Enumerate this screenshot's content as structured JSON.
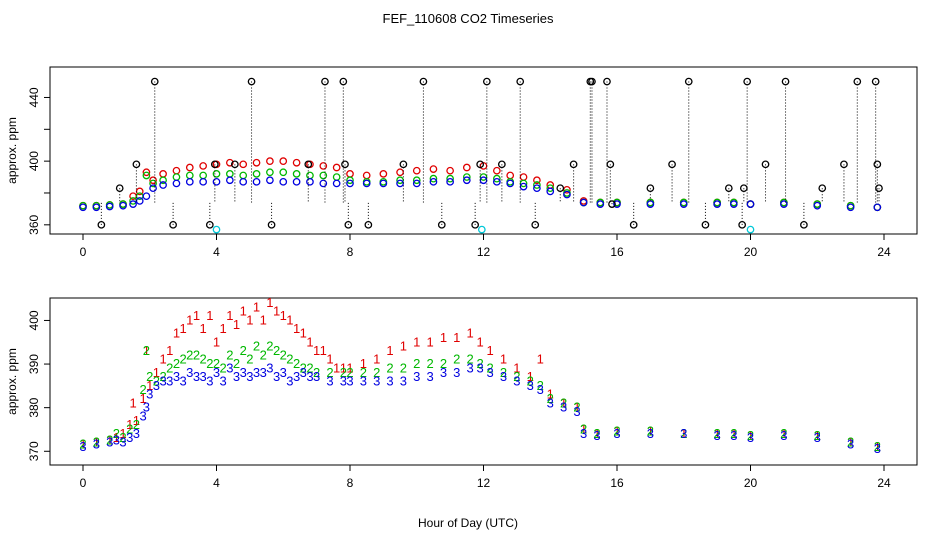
{
  "title": "FEF_110608  CO2 Timeseries",
  "xlabel": "Hour of Day (UTC)",
  "colors": {
    "series1": "#e00000",
    "series2": "#00b800",
    "series3": "#0000e0",
    "qc_hour": "#000000",
    "qc_cyan": "#00c8d8",
    "spike": "#000000"
  },
  "chart_data": [
    {
      "type": "scatter",
      "name": "upper-panel",
      "ylabel": "approx. ppm",
      "xlim": [
        0,
        24
      ],
      "ylim": [
        358,
        456
      ],
      "xticks": [
        0,
        4,
        8,
        12,
        16,
        20,
        24
      ],
      "yticks": [
        360,
        400,
        440
      ],
      "yticks_unlabeled": [
        380,
        420
      ],
      "x_tick_labels": [
        "0",
        "4",
        "8",
        "12",
        "16",
        "20",
        "24"
      ],
      "y_tick_labels": [
        "360",
        "400",
        "440"
      ],
      "series": [
        {
          "name": "red",
          "symbol": "o",
          "x": [
            0,
            0.4,
            0.8,
            1.2,
            1.5,
            1.7,
            1.9,
            2.1,
            2.4,
            2.8,
            3.2,
            3.6,
            4.0,
            4.4,
            4.8,
            5.2,
            5.6,
            6.0,
            6.4,
            6.8,
            7.2,
            7.6,
            8.0,
            8.5,
            9.0,
            9.5,
            10.0,
            10.5,
            11.0,
            11.5,
            12.0,
            12.4,
            12.8,
            13.2,
            13.6,
            14.0,
            14.5,
            15.0,
            15.5,
            16.0,
            17.0,
            18.0,
            19.0,
            19.5,
            20.0,
            21.0,
            22.0,
            23.0,
            23.8
          ],
          "y": [
            372,
            372,
            372.5,
            373,
            378,
            381,
            393,
            388,
            392,
            394,
            396,
            397,
            398,
            399,
            398,
            399,
            400,
            400,
            399,
            398,
            397,
            396,
            392,
            391,
            392,
            393,
            394,
            395,
            394,
            396,
            397,
            394,
            391,
            390,
            388,
            385,
            382,
            375,
            374,
            374,
            374,
            374,
            374,
            374,
            373,
            374,
            373,
            372,
            371
          ]
        },
        {
          "name": "green",
          "symbol": "o",
          "x": [
            0,
            0.4,
            0.8,
            1.2,
            1.5,
            1.7,
            1.9,
            2.1,
            2.4,
            2.8,
            3.2,
            3.6,
            4.0,
            4.4,
            4.8,
            5.2,
            5.6,
            6.0,
            6.4,
            6.8,
            7.2,
            7.6,
            8.0,
            8.5,
            9.0,
            9.5,
            10.0,
            10.5,
            11.0,
            11.5,
            12.0,
            12.4,
            12.8,
            13.2,
            13.6,
            14.0,
            14.5,
            15.0,
            15.5,
            16.0,
            17.0,
            18.0,
            19.0,
            19.5,
            20.0,
            21.0,
            22.0,
            23.0,
            23.8
          ],
          "y": [
            372,
            372,
            372.5,
            373,
            375,
            378,
            391,
            386,
            388,
            390,
            391,
            391,
            392,
            392,
            391,
            392,
            393,
            393,
            392,
            391,
            391,
            390,
            388,
            387,
            387,
            388,
            388,
            389,
            389,
            390,
            390,
            389,
            387,
            386,
            385,
            383,
            380,
            374,
            374,
            374,
            374,
            374,
            374,
            374,
            373,
            374,
            373,
            372,
            371
          ]
        },
        {
          "name": "blue",
          "symbol": "o",
          "x": [
            0,
            0.4,
            0.8,
            1.2,
            1.5,
            1.7,
            1.9,
            2.1,
            2.4,
            2.8,
            3.2,
            3.6,
            4.0,
            4.4,
            4.8,
            5.2,
            5.6,
            6.0,
            6.4,
            6.8,
            7.2,
            7.6,
            8.0,
            8.5,
            9.0,
            9.5,
            10.0,
            10.5,
            11.0,
            11.5,
            12.0,
            12.4,
            12.8,
            13.2,
            13.6,
            14.0,
            14.5,
            15.0,
            15.5,
            16.0,
            17.0,
            18.0,
            19.0,
            19.5,
            20.0,
            21.0,
            22.0,
            23.0,
            23.8
          ],
          "y": [
            371,
            371,
            371.5,
            372,
            373,
            375,
            378,
            383,
            385,
            386,
            387,
            387,
            387,
            388,
            387,
            387,
            388,
            387,
            387,
            387,
            386,
            386,
            386,
            386,
            386,
            386,
            386,
            387,
            387,
            388,
            388,
            387,
            386,
            384,
            383,
            381,
            379,
            374,
            373,
            373,
            373,
            373,
            373,
            373,
            373,
            373,
            372,
            371,
            371
          ]
        },
        {
          "name": "spikes-black",
          "symbol": "o",
          "x": [
            0.55,
            1.1,
            1.6,
            2.15,
            2.7,
            3.8,
            3.95,
            4.55,
            5.05,
            5.65,
            6.75,
            7.25,
            7.8,
            7.85,
            7.95,
            8.55,
            9.6,
            10.2,
            10.75,
            11.75,
            11.9,
            12.1,
            12.55,
            13.1,
            13.55,
            14.3,
            14.7,
            15.2,
            15.25,
            15.7,
            15.8,
            15.85,
            16.5,
            17.0,
            17.65,
            18.15,
            18.65,
            19.35,
            19.75,
            19.8,
            19.9,
            20.45,
            21.05,
            21.6,
            22.15,
            22.8,
            23.2,
            23.75,
            23.8,
            23.85
          ],
          "y": [
            360,
            383,
            398,
            450,
            360,
            360,
            398,
            398,
            450,
            360,
            398,
            450,
            450,
            398,
            360,
            360,
            398,
            450,
            360,
            360,
            398,
            450,
            398,
            450,
            360,
            383,
            398,
            450,
            450,
            450,
            398,
            373,
            360,
            383,
            398,
            450,
            360,
            383,
            360,
            383,
            450,
            398,
            450,
            360,
            383,
            398,
            450,
            450,
            398,
            383
          ]
        },
        {
          "name": "flag-cyan",
          "symbol": "o",
          "x": [
            4.0,
            11.95,
            20.0
          ],
          "y": [
            357,
            357,
            357
          ]
        }
      ]
    },
    {
      "type": "scatter",
      "name": "lower-panel",
      "ylabel": "approx. ppm",
      "xlim": [
        0,
        24
      ],
      "ylim": [
        368,
        404
      ],
      "xticks": [
        0,
        4,
        8,
        12,
        16,
        20,
        24
      ],
      "yticks": [
        370,
        380,
        390,
        400
      ],
      "x_tick_labels": [
        "0",
        "4",
        "8",
        "12",
        "16",
        "20",
        "24"
      ],
      "y_tick_labels": [
        "370",
        "380",
        "390",
        "400"
      ],
      "series": [
        {
          "name": "1",
          "symbol": "1",
          "x": [
            0,
            0.4,
            0.8,
            1.0,
            1.2,
            1.4,
            1.5,
            1.6,
            1.8,
            1.9,
            2.0,
            2.2,
            2.4,
            2.6,
            2.8,
            3.0,
            3.2,
            3.4,
            3.6,
            3.8,
            4.0,
            4.2,
            4.4,
            4.6,
            4.8,
            5.0,
            5.2,
            5.4,
            5.6,
            5.8,
            6.0,
            6.2,
            6.4,
            6.6,
            6.8,
            7.0,
            7.2,
            7.4,
            7.6,
            7.8,
            8.0,
            8.4,
            8.8,
            9.2,
            9.6,
            10.0,
            10.4,
            10.8,
            11.2,
            11.6,
            11.9,
            12.2,
            12.6,
            13.0,
            13.4,
            13.7,
            14.0,
            14.4,
            14.8,
            15.0,
            15.4,
            16.0,
            17.0,
            18.0,
            19.0,
            19.5,
            20.0,
            21.0,
            22.0,
            23.0,
            23.8
          ],
          "y": [
            371.5,
            372,
            372.5,
            373,
            374,
            376,
            381,
            377,
            382,
            393,
            385,
            388,
            391,
            393,
            397,
            398,
            400,
            401,
            398,
            401,
            395,
            398,
            401,
            399,
            402,
            400,
            403,
            400,
            405,
            402,
            401,
            400,
            398,
            397,
            395,
            393,
            393,
            391,
            389,
            389,
            389,
            390,
            391,
            393,
            394,
            395,
            395,
            396,
            396,
            397,
            395,
            393,
            391,
            389,
            387,
            391,
            383,
            381,
            380,
            375,
            374,
            374.5,
            374.5,
            374,
            374,
            374,
            373.5,
            374,
            373.5,
            372,
            371
          ]
        },
        {
          "name": "2",
          "symbol": "2",
          "x": [
            0,
            0.4,
            0.8,
            1.0,
            1.2,
            1.4,
            1.6,
            1.8,
            1.9,
            2.0,
            2.2,
            2.4,
            2.6,
            2.8,
            3.0,
            3.2,
            3.4,
            3.6,
            3.8,
            4.0,
            4.2,
            4.4,
            4.6,
            4.8,
            5.0,
            5.2,
            5.4,
            5.6,
            5.8,
            6.0,
            6.2,
            6.4,
            6.6,
            6.8,
            7.0,
            7.4,
            7.8,
            8.0,
            8.4,
            8.8,
            9.2,
            9.6,
            10.0,
            10.4,
            10.8,
            11.2,
            11.6,
            11.9,
            12.2,
            12.6,
            13.0,
            13.4,
            13.7,
            14.0,
            14.4,
            14.8,
            15.0,
            15.4,
            16.0,
            17.0,
            18.0,
            19.0,
            19.5,
            20.0,
            21.0,
            22.0,
            23.0,
            23.8
          ],
          "y": [
            371.5,
            372,
            372.5,
            374,
            373,
            375,
            376,
            384,
            393,
            387,
            386,
            387,
            389,
            390,
            391,
            392,
            392,
            391,
            390,
            390,
            389,
            392,
            390,
            393,
            391,
            394,
            392,
            394,
            393,
            392,
            391,
            390,
            389,
            389,
            388,
            388,
            388,
            388,
            388,
            388,
            389,
            389,
            390,
            390,
            390,
            391,
            391,
            390,
            389,
            388,
            387,
            386,
            385,
            382,
            381,
            380,
            375,
            374,
            374.5,
            374.5,
            374,
            374,
            374,
            373.5,
            374,
            373.5,
            372,
            371
          ]
        },
        {
          "name": "3",
          "symbol": "3",
          "x": [
            0,
            0.4,
            0.8,
            1.0,
            1.2,
            1.4,
            1.6,
            1.8,
            1.9,
            2.0,
            2.2,
            2.4,
            2.6,
            2.8,
            3.0,
            3.2,
            3.4,
            3.6,
            3.8,
            4.0,
            4.2,
            4.4,
            4.6,
            4.8,
            5.0,
            5.2,
            5.4,
            5.6,
            5.8,
            6.0,
            6.2,
            6.4,
            6.6,
            6.8,
            7.0,
            7.4,
            7.8,
            8.0,
            8.4,
            8.8,
            9.2,
            9.6,
            10.0,
            10.4,
            10.8,
            11.2,
            11.6,
            11.9,
            12.2,
            12.6,
            13.0,
            13.4,
            13.7,
            14.0,
            14.4,
            14.8,
            15.0,
            15.4,
            16.0,
            17.0,
            18.0,
            19.0,
            19.5,
            20.0,
            21.0,
            22.0,
            23.0,
            23.8
          ],
          "y": [
            371,
            371.5,
            372,
            372.5,
            372,
            373,
            374,
            378,
            380,
            383,
            385,
            386,
            386,
            387,
            386,
            388,
            387,
            387,
            386,
            388,
            386,
            389,
            387,
            388,
            387,
            388,
            388,
            389,
            387,
            388,
            386,
            387,
            388,
            387,
            387,
            386,
            386,
            386,
            386,
            386,
            386,
            386,
            387,
            387,
            388,
            388,
            389,
            389,
            388,
            387,
            386,
            385,
            384,
            381,
            380,
            379,
            374,
            373.5,
            374,
            374,
            374,
            373.5,
            373.5,
            373,
            373.5,
            373,
            371.5,
            370.5
          ]
        }
      ]
    }
  ]
}
